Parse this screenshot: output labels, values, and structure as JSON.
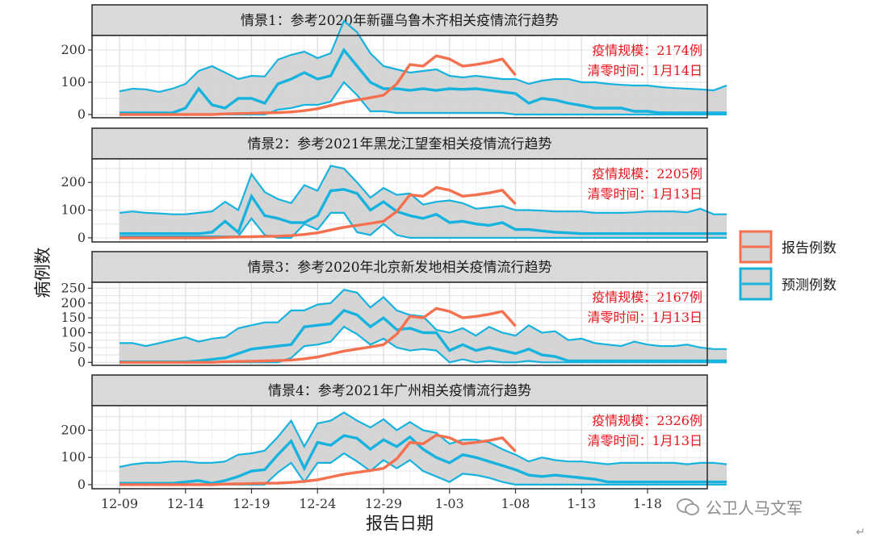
{
  "chart_data": {
    "type": "line",
    "xlabel": "报告日期",
    "ylabel": "病例数",
    "x_tick_labels": [
      "12-09",
      "12-14",
      "12-19",
      "12-24",
      "12-29",
      "1-03",
      "1-08",
      "1-13",
      "1-18"
    ],
    "legend": {
      "placement": "right",
      "items": [
        {
          "label": "报告例数",
          "color": "#f4704f"
        },
        {
          "label": "预测例数",
          "color": "#17b3de"
        }
      ]
    },
    "colors": {
      "reported": "#f4704f",
      "predicted": "#17b3de",
      "band_fill": "#d3d3d3",
      "annotation": "#e8141b"
    },
    "reported_series": [
      0,
      0,
      0,
      0,
      2,
      3,
      4,
      5,
      6,
      8,
      12,
      18,
      28,
      38,
      45,
      52,
      60,
      95,
      155,
      150,
      182,
      172,
      150,
      155,
      162,
      172,
      122
    ],
    "panels": [
      {
        "title": "情景1：参考2020年新疆乌鲁木齐相关疫情流行趋势",
        "yticks": [
          0,
          100,
          200
        ],
        "ylim": [
          -10,
          245
        ],
        "scale_text": "疫情规模：2174例",
        "clear_text": "清零时间：1月14日",
        "predicted": {
          "median": [
            5,
            5,
            5,
            5,
            5,
            20,
            80,
            30,
            20,
            50,
            50,
            35,
            95,
            110,
            130,
            110,
            120,
            200,
            150,
            100,
            80,
            80,
            75,
            80,
            75,
            80,
            78,
            80,
            75,
            70,
            65,
            35,
            50,
            45,
            35,
            28,
            20,
            20,
            20,
            10,
            10,
            5,
            5,
            5,
            5,
            5,
            5
          ],
          "upper": [
            72,
            80,
            78,
            70,
            80,
            95,
            135,
            150,
            130,
            110,
            120,
            118,
            170,
            185,
            195,
            175,
            190,
            290,
            255,
            190,
            150,
            140,
            130,
            135,
            140,
            120,
            115,
            120,
            115,
            110,
            110,
            95,
            105,
            110,
            110,
            100,
            100,
            95,
            92,
            90,
            90,
            85,
            82,
            80,
            78,
            75,
            90
          ],
          "lower": [
            0,
            0,
            0,
            0,
            0,
            0,
            0,
            0,
            0,
            0,
            0,
            0,
            15,
            20,
            30,
            30,
            40,
            100,
            60,
            10,
            10,
            5,
            5,
            5,
            5,
            5,
            5,
            5,
            5,
            5,
            0,
            0,
            0,
            0,
            0,
            0,
            0,
            0,
            0,
            0,
            0,
            0,
            0,
            0,
            0,
            0,
            0
          ]
        }
      },
      {
        "title": "情景2：参考2021年黑龙江望奎相关疫情流行趋势",
        "yticks": [
          0,
          100,
          200
        ],
        "ylim": [
          -15,
          285
        ],
        "scale_text": "疫情规模：2205例",
        "clear_text": "清零时间：1月13日",
        "predicted": {
          "median": [
            15,
            15,
            15,
            15,
            15,
            15,
            15,
            20,
            60,
            20,
            150,
            80,
            70,
            55,
            55,
            80,
            170,
            175,
            160,
            100,
            130,
            95,
            80,
            70,
            85,
            55,
            60,
            50,
            45,
            55,
            30,
            30,
            25,
            20,
            18,
            15,
            15,
            15,
            15,
            15,
            15,
            15,
            15,
            15,
            15,
            15,
            15
          ],
          "upper": [
            90,
            95,
            90,
            88,
            85,
            85,
            90,
            95,
            130,
            100,
            230,
            165,
            140,
            125,
            190,
            170,
            260,
            250,
            200,
            145,
            180,
            155,
            160,
            120,
            130,
            135,
            125,
            105,
            110,
            115,
            100,
            100,
            98,
            95,
            95,
            95,
            90,
            90,
            90,
            92,
            95,
            95,
            95,
            92,
            105,
            85,
            85
          ],
          "lower": [
            5,
            5,
            5,
            5,
            5,
            5,
            5,
            5,
            5,
            5,
            70,
            10,
            0,
            0,
            50,
            30,
            90,
            90,
            20,
            10,
            50,
            10,
            0,
            0,
            0,
            0,
            0,
            0,
            0,
            0,
            0,
            0,
            0,
            0,
            0,
            0,
            0,
            0,
            0,
            0,
            0,
            0,
            0,
            0,
            0,
            0,
            0
          ]
        }
      },
      {
        "title": "情景3：参考2020年北京新发地相关疫情流行趋势",
        "yticks": [
          0,
          50,
          100,
          150,
          200,
          250
        ],
        "ylim": [
          -10,
          270
        ],
        "scale_text": "疫情规模：2167例",
        "clear_text": "清零时间：1月13日",
        "predicted": {
          "median": [
            2,
            2,
            2,
            2,
            2,
            2,
            5,
            10,
            15,
            30,
            45,
            50,
            55,
            60,
            120,
            125,
            130,
            175,
            160,
            120,
            150,
            110,
            115,
            100,
            100,
            40,
            60,
            40,
            50,
            40,
            30,
            45,
            25,
            20,
            5,
            5,
            5,
            5,
            5,
            5,
            5,
            5,
            5,
            5,
            5,
            5,
            5
          ],
          "upper": [
            65,
            65,
            55,
            65,
            75,
            85,
            70,
            80,
            85,
            115,
            125,
            135,
            135,
            175,
            175,
            195,
            200,
            245,
            235,
            185,
            220,
            175,
            160,
            155,
            110,
            100,
            115,
            90,
            120,
            100,
            90,
            125,
            100,
            105,
            75,
            80,
            65,
            60,
            55,
            70,
            60,
            55,
            55,
            60,
            50,
            45,
            45
          ],
          "lower": [
            0,
            0,
            0,
            0,
            0,
            0,
            0,
            0,
            0,
            0,
            0,
            0,
            0,
            15,
            55,
            60,
            70,
            120,
            95,
            60,
            80,
            50,
            40,
            45,
            40,
            0,
            10,
            0,
            5,
            0,
            0,
            5,
            0,
            0,
            0,
            0,
            0,
            0,
            0,
            0,
            0,
            0,
            0,
            0,
            0,
            0,
            0
          ]
        }
      },
      {
        "title": "情景4：参考2021年广州相关疫情流行趋势",
        "yticks": [
          0,
          100,
          200
        ],
        "ylim": [
          -15,
          290
        ],
        "scale_text": "疫情规模：2326例",
        "clear_text": "清零时间：1月13日",
        "predicted": {
          "median": [
            5,
            5,
            5,
            5,
            5,
            10,
            15,
            5,
            15,
            30,
            50,
            55,
            110,
            160,
            60,
            155,
            145,
            180,
            170,
            130,
            165,
            140,
            175,
            130,
            100,
            80,
            110,
            100,
            85,
            70,
            55,
            35,
            30,
            35,
            30,
            25,
            20,
            10,
            10,
            10,
            10,
            10,
            10,
            10,
            10,
            10,
            10
          ],
          "upper": [
            65,
            75,
            80,
            80,
            85,
            85,
            80,
            80,
            85,
            110,
            115,
            125,
            175,
            235,
            140,
            225,
            235,
            265,
            235,
            210,
            240,
            200,
            230,
            200,
            190,
            150,
            165,
            165,
            155,
            130,
            110,
            85,
            100,
            90,
            85,
            85,
            80,
            75,
            80,
            80,
            80,
            80,
            80,
            75,
            80,
            80,
            75
          ],
          "lower": [
            0,
            0,
            0,
            0,
            0,
            0,
            0,
            0,
            0,
            0,
            0,
            0,
            45,
            80,
            10,
            80,
            80,
            115,
            85,
            50,
            90,
            60,
            90,
            50,
            30,
            10,
            40,
            35,
            25,
            10,
            0,
            0,
            0,
            0,
            0,
            0,
            0,
            0,
            0,
            0,
            0,
            0,
            0,
            0,
            0,
            0,
            0
          ]
        }
      }
    ]
  },
  "watermark": {
    "icon": "wechat-icon",
    "text": "公卫人马文军"
  },
  "return_mark": "↵"
}
